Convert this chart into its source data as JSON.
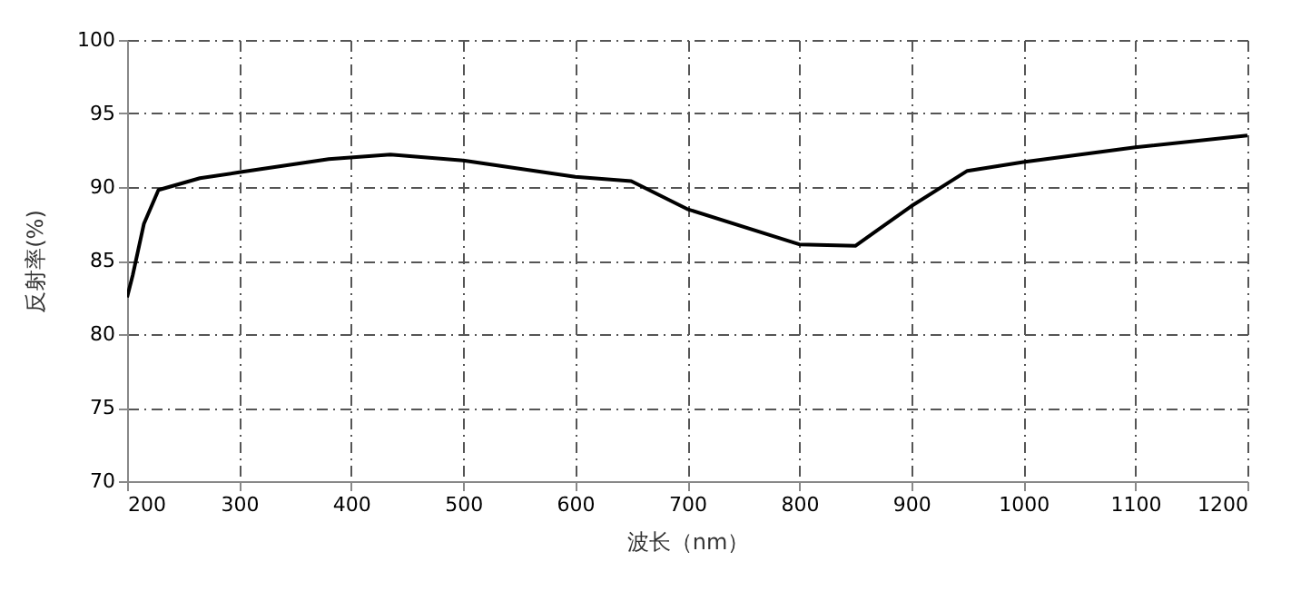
{
  "chart_data": {
    "type": "line",
    "xlabel": "波长（nm）",
    "ylabel": "反射率(%)",
    "x": [
      200,
      205,
      215,
      228,
      265,
      300,
      380,
      435,
      500,
      600,
      650,
      700,
      800,
      850,
      900,
      950,
      1000,
      1100,
      1200
    ],
    "series": [
      {
        "color": "#000000",
        "values": [
          82.5,
          84,
          87.5,
          89.8,
          90.6,
          91,
          91.9,
          92.2,
          91.8,
          90.7,
          90.4,
          88.5,
          86.1,
          86,
          88.7,
          91.1,
          91.7,
          92.7,
          93.5
        ]
      }
    ],
    "xlim": [
      200,
      1200
    ],
    "xticks": [
      200,
      300,
      400,
      500,
      600,
      700,
      800,
      900,
      1000,
      1100,
      1200
    ],
    "ylim": [
      70,
      100
    ],
    "yticks": [
      70,
      75,
      80,
      85,
      90,
      95,
      100
    ],
    "grid": true,
    "marker": "none",
    "line_style": "solid"
  }
}
